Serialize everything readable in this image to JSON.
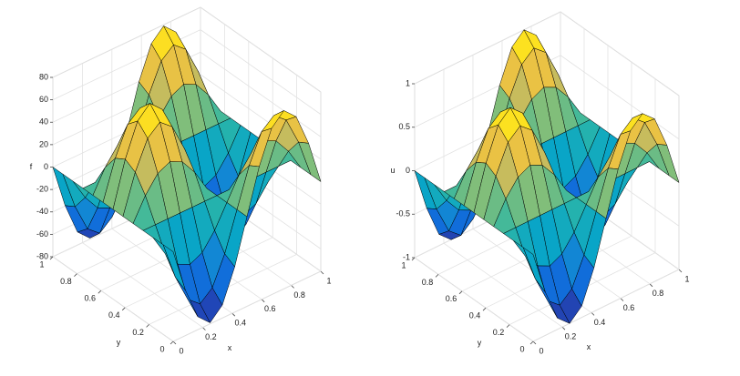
{
  "chart_data": [
    {
      "type": "surface",
      "xlabel": "x",
      "ylabel": "y",
      "zlabel": "f",
      "x": [
        0,
        0.083,
        0.167,
        0.25,
        0.333,
        0.417,
        0.5,
        0.583,
        0.667,
        0.75,
        0.833,
        0.917,
        1
      ],
      "y": [
        0,
        0.083,
        0.167,
        0.25,
        0.333,
        0.417,
        0.5,
        0.583,
        0.667,
        0.75,
        0.833,
        0.917,
        1
      ],
      "z": [
        [
          0,
          -39.5,
          -68.4,
          -79,
          -68.4,
          -39.5,
          0,
          39.5,
          68.4,
          79,
          68.4,
          39.5,
          0
        ],
        [
          0,
          -34.2,
          -59.2,
          -68.4,
          -59.2,
          -34.2,
          0,
          34.2,
          59.2,
          68.4,
          59.2,
          34.2,
          0
        ],
        [
          0,
          -19.7,
          -34.2,
          -39.5,
          -34.2,
          -19.7,
          0,
          19.7,
          34.2,
          39.5,
          34.2,
          19.7,
          0
        ],
        [
          0,
          0,
          0,
          0,
          0,
          0,
          0,
          0,
          0,
          0,
          0,
          0,
          0
        ],
        [
          0,
          19.7,
          34.2,
          39.5,
          34.2,
          19.7,
          0,
          -19.7,
          -34.2,
          -39.5,
          -34.2,
          -19.7,
          0
        ],
        [
          0,
          34.2,
          59.2,
          68.4,
          59.2,
          34.2,
          0,
          -34.2,
          -59.2,
          -68.4,
          -59.2,
          -34.2,
          0
        ],
        [
          0,
          39.5,
          68.4,
          79,
          68.4,
          39.5,
          0,
          -39.5,
          -68.4,
          -79,
          -68.4,
          -39.5,
          0
        ],
        [
          0,
          34.2,
          59.2,
          68.4,
          59.2,
          34.2,
          0,
          -34.2,
          -59.2,
          -68.4,
          -59.2,
          -34.2,
          0
        ],
        [
          0,
          19.7,
          34.2,
          39.5,
          34.2,
          19.7,
          0,
          -19.7,
          -34.2,
          -39.5,
          -34.2,
          -19.7,
          0
        ],
        [
          0,
          0,
          0,
          0,
          0,
          0,
          0,
          0,
          0,
          0,
          0,
          0,
          0
        ],
        [
          0,
          -19.7,
          -34.2,
          -39.5,
          -34.2,
          -19.7,
          0,
          19.7,
          34.2,
          39.5,
          34.2,
          19.7,
          0
        ],
        [
          0,
          -34.2,
          -59.2,
          -68.4,
          -59.2,
          -34.2,
          0,
          34.2,
          59.2,
          68.4,
          59.2,
          34.2,
          0
        ],
        [
          0,
          -39.5,
          -68.4,
          -79,
          -68.4,
          -39.5,
          0,
          39.5,
          68.4,
          79,
          68.4,
          39.5,
          0
        ]
      ],
      "xlim": [
        0,
        1
      ],
      "ylim": [
        0,
        1
      ],
      "zlim": [
        -80,
        80
      ],
      "xticks": [
        0,
        0.2,
        0.4,
        0.6,
        0.8,
        1
      ],
      "yticks": [
        0,
        0.2,
        0.4,
        0.6,
        0.8,
        1
      ],
      "zticks": [
        -80,
        -60,
        -40,
        -20,
        0,
        20,
        40,
        60,
        80
      ],
      "grid": true,
      "colormap": [
        "#352a87",
        "#0f5cdd",
        "#1481d6",
        "#06a4ca",
        "#2eb7a4",
        "#87bf77",
        "#d1bb59",
        "#fec832",
        "#f9fb0e"
      ]
    },
    {
      "type": "surface",
      "xlabel": "x",
      "ylabel": "y",
      "zlabel": "u",
      "x": [
        0,
        0.083,
        0.167,
        0.25,
        0.333,
        0.417,
        0.5,
        0.583,
        0.667,
        0.75,
        0.833,
        0.917,
        1
      ],
      "y": [
        0,
        0.083,
        0.167,
        0.25,
        0.333,
        0.417,
        0.5,
        0.583,
        0.667,
        0.75,
        0.833,
        0.917,
        1
      ],
      "z": [
        [
          0,
          -0.5,
          -0.87,
          -1,
          -0.87,
          -0.5,
          0,
          0.5,
          0.87,
          1,
          0.87,
          0.5,
          0
        ],
        [
          0,
          -0.43,
          -0.75,
          -0.87,
          -0.75,
          -0.43,
          0,
          0.43,
          0.75,
          0.87,
          0.75,
          0.43,
          0
        ],
        [
          0,
          -0.25,
          -0.43,
          -0.5,
          -0.43,
          -0.25,
          0,
          0.25,
          0.43,
          0.5,
          0.43,
          0.25,
          0
        ],
        [
          0,
          0,
          0,
          0,
          0,
          0,
          0,
          0,
          0,
          0,
          0,
          0,
          0
        ],
        [
          0,
          0.25,
          0.43,
          0.5,
          0.43,
          0.25,
          0,
          -0.25,
          -0.43,
          -0.5,
          -0.43,
          -0.25,
          0
        ],
        [
          0,
          0.43,
          0.75,
          0.87,
          0.75,
          0.43,
          0,
          -0.43,
          -0.75,
          -0.87,
          -0.75,
          -0.43,
          0
        ],
        [
          0,
          0.5,
          0.87,
          1,
          0.87,
          0.5,
          0,
          -0.5,
          -0.87,
          -1,
          -0.87,
          -0.5,
          0
        ],
        [
          0,
          0.43,
          0.75,
          0.87,
          0.75,
          0.43,
          0,
          -0.43,
          -0.75,
          -0.87,
          -0.75,
          -0.43,
          0
        ],
        [
          0,
          0.25,
          0.43,
          0.5,
          0.43,
          0.25,
          0,
          -0.25,
          -0.43,
          -0.5,
          -0.43,
          -0.25,
          0
        ],
        [
          0,
          0,
          0,
          0,
          0,
          0,
          0,
          0,
          0,
          0,
          0,
          0,
          0
        ],
        [
          0,
          -0.25,
          -0.43,
          -0.5,
          -0.43,
          -0.25,
          0,
          0.25,
          0.43,
          0.5,
          0.43,
          0.25,
          0
        ],
        [
          0,
          -0.43,
          -0.75,
          -0.87,
          -0.75,
          -0.43,
          0,
          0.43,
          0.75,
          0.87,
          0.75,
          0.43,
          0
        ],
        [
          0,
          -0.5,
          -0.87,
          -1,
          -0.87,
          -0.5,
          0,
          0.5,
          0.87,
          1,
          0.87,
          0.5,
          0
        ]
      ],
      "xlim": [
        0,
        1
      ],
      "ylim": [
        0,
        1
      ],
      "zlim": [
        -1,
        1
      ],
      "xticks": [
        0,
        0.2,
        0.4,
        0.6,
        0.8,
        1
      ],
      "yticks": [
        0,
        0.2,
        0.4,
        0.6,
        0.8,
        1
      ],
      "zticks": [
        -1,
        -0.5,
        0,
        0.5,
        1
      ],
      "grid": true,
      "colormap": [
        "#352a87",
        "#0f5cdd",
        "#1481d6",
        "#06a4ca",
        "#2eb7a4",
        "#87bf77",
        "#d1bb59",
        "#fec832",
        "#f9fb0e"
      ]
    }
  ]
}
